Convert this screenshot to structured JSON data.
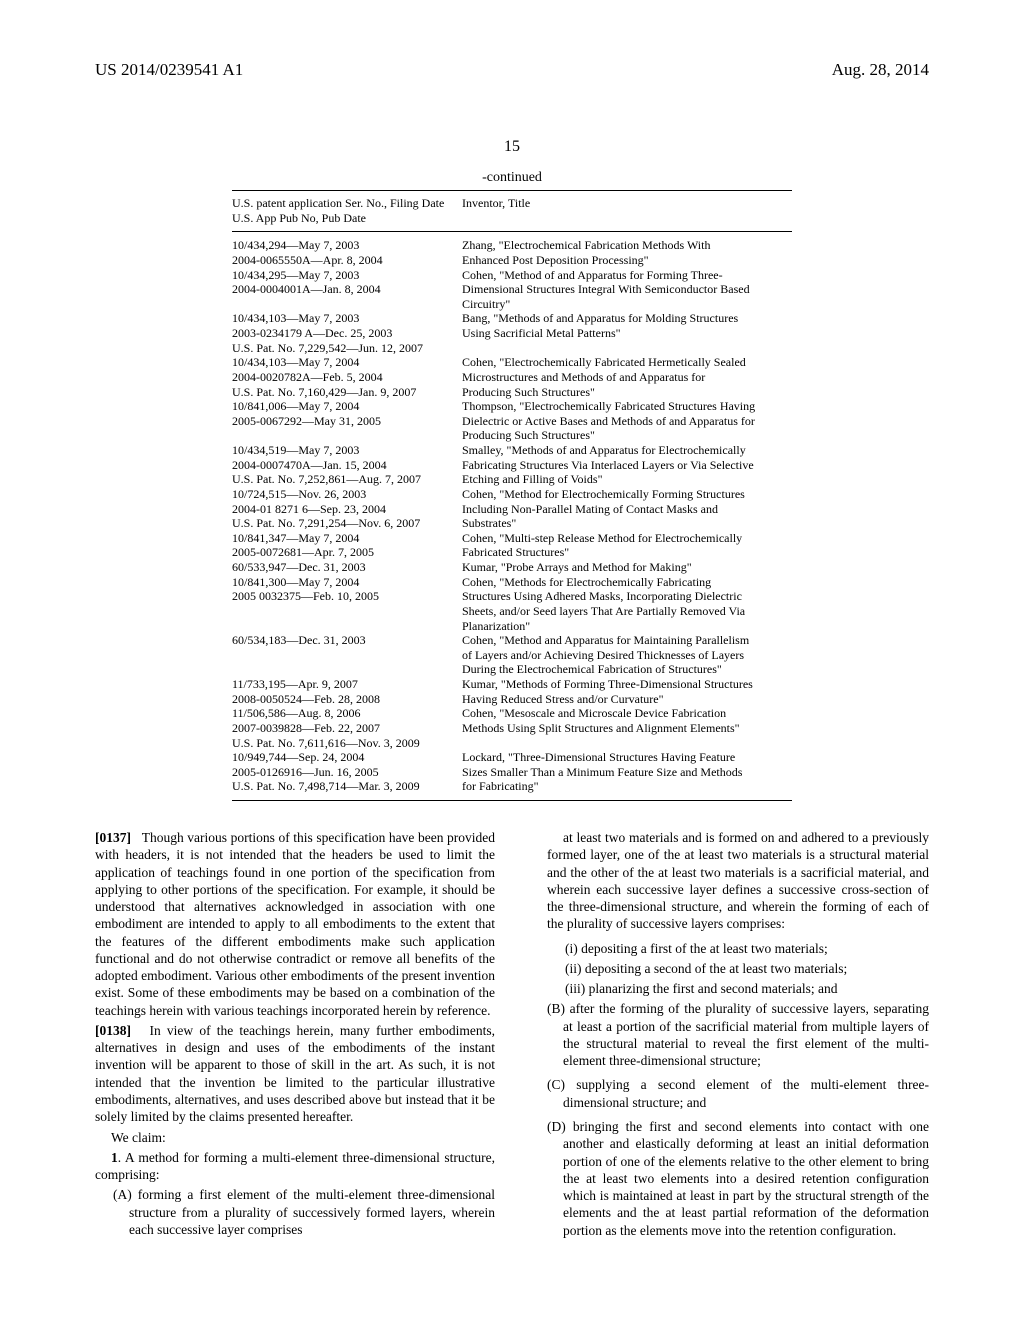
{
  "header": {
    "pub_no": "US 2014/0239541 A1",
    "pub_date": "Aug. 28, 2014"
  },
  "page_number": "15",
  "table": {
    "continued_label": "-continued",
    "header_left_line1": "U.S. patent application Ser. No., Filing Date",
    "header_left_line2": "U.S. App Pub No, Pub Date",
    "header_right": "Inventor, Title",
    "rows": [
      {
        "left": [
          "10/434,294—May 7, 2003",
          "2004-0065550A—Apr. 8, 2004"
        ],
        "right": [
          "Zhang, \"Electrochemical Fabrication Methods With",
          "Enhanced Post Deposition Processing\""
        ]
      },
      {
        "left": [
          "10/434,295—May 7, 2003",
          "2004-0004001A—Jan. 8, 2004"
        ],
        "right": [
          "Cohen, \"Method of and Apparatus for Forming Three-",
          "Dimensional Structures Integral With Semiconductor Based",
          "Circuitry\""
        ]
      },
      {
        "left": [
          "10/434,103—May 7, 2003",
          "2003-0234179 A—Dec. 25, 2003",
          "U.S. Pat. No. 7,229,542—Jun. 12, 2007"
        ],
        "right": [
          "Bang, \"Methods of and Apparatus for Molding Structures",
          "Using Sacrificial Metal Patterns\""
        ]
      },
      {
        "left": [
          "10/434,103—May 7, 2004",
          "2004-0020782A—Feb. 5, 2004",
          "U.S. Pat. No. 7,160,429—Jan. 9, 2007"
        ],
        "right": [
          "Cohen, \"Electrochemically Fabricated Hermetically Sealed",
          "Microstructures and Methods of and Apparatus for",
          "Producing Such Structures\""
        ]
      },
      {
        "left": [
          "10/841,006—May 7, 2004",
          "2005-0067292—May 31, 2005"
        ],
        "right": [
          "Thompson, \"Electrochemically Fabricated Structures Having",
          "Dielectric or Active Bases and Methods of and Apparatus for",
          "Producing Such Structures\""
        ]
      },
      {
        "left": [
          "10/434,519—May 7, 2003",
          "2004-0007470A—Jan. 15, 2004",
          "U.S. Pat. No. 7,252,861—Aug. 7, 2007"
        ],
        "right": [
          "Smalley, \"Methods of and Apparatus for Electrochemically",
          "Fabricating Structures Via Interlaced Layers or Via Selective",
          "Etching and Filling of Voids\""
        ]
      },
      {
        "left": [
          "10/724,515—Nov. 26, 2003",
          "2004-01 8271 6—Sep. 23, 2004",
          "U.S. Pat. No. 7,291,254—Nov. 6, 2007"
        ],
        "right": [
          "Cohen, \"Method for Electrochemically Forming Structures",
          "Including Non-Parallel Mating of Contact Masks and",
          "Substrates\""
        ]
      },
      {
        "left": [
          "10/841,347—May 7, 2004",
          "2005-0072681—Apr. 7, 2005"
        ],
        "right": [
          "Cohen, \"Multi-step Release Method for Electrochemically",
          "Fabricated Structures\""
        ]
      },
      {
        "left": [
          "60/533,947—Dec. 31, 2003"
        ],
        "right": [
          "Kumar, \"Probe Arrays and Method for Making\""
        ]
      },
      {
        "left": [
          "10/841,300—May 7, 2004",
          "2005 0032375—Feb. 10, 2005"
        ],
        "right": [
          "Cohen, \"Methods for Electrochemically Fabricating",
          "Structures Using Adhered Masks, Incorporating Dielectric",
          "Sheets, and/or Seed layers That Are Partially Removed Via",
          "Planarization\""
        ]
      },
      {
        "left": [
          "60/534,183—Dec. 31, 2003"
        ],
        "right": [
          "Cohen, \"Method and Apparatus for Maintaining Parallelism",
          "of Layers and/or Achieving Desired Thicknesses of Layers",
          "During the Electrochemical Fabrication of Structures\""
        ]
      },
      {
        "left": [
          "11/733,195—Apr. 9, 2007",
          "2008-0050524—Feb. 28, 2008"
        ],
        "right": [
          "Kumar, \"Methods of Forming Three-Dimensional Structures",
          "Having Reduced Stress and/or Curvature\""
        ]
      },
      {
        "left": [
          "11/506,586—Aug. 8, 2006",
          "2007-0039828—Feb. 22, 2007",
          "U.S. Pat. No. 7,611,616—Nov. 3, 2009"
        ],
        "right": [
          "Cohen, \"Mesoscale and Microscale Device Fabrication",
          "Methods Using Split Structures and Alignment Elements\""
        ]
      },
      {
        "left": [
          "10/949,744—Sep. 24, 2004",
          "2005-0126916—Jun. 16, 2005",
          "U.S. Pat. No. 7,498,714—Mar. 3, 2009"
        ],
        "right": [
          "Lockard, \"Three-Dimensional Structures Having Feature",
          "Sizes Smaller Than a Minimum Feature Size and Methods",
          "for Fabricating\""
        ]
      }
    ]
  },
  "body": {
    "left_col": {
      "p137_num": "[0137]",
      "p137": "Though various portions of this specification have been provided with headers, it is not intended that the headers be used to limit the application of teachings found in one portion of the specification from applying to other portions of the specification. For example, it should be understood that alternatives acknowledged in association with one embodiment are intended to apply to all embodiments to the extent that the features of the different embodiments make such application functional and do not otherwise contradict or remove all benefits of the adopted embodiment. Various other embodiments of the present invention exist. Some of these embodiments may be based on a combination of the teachings herein with various teachings incorporated herein by reference.",
      "p138_num": "[0138]",
      "p138": "In view of the teachings herein, many further embodiments, alternatives in design and uses of the embodiments of the instant invention will be apparent to those of skill in the art. As such, it is not intended that the invention be limited to the particular illustrative embodiments, alternatives, and uses described above but instead that it be solely limited by the claims presented hereafter.",
      "we_claim": "We claim:",
      "claim1_num": "1",
      "claim1_intro": ". A method for forming a multi-element three-dimensional structure, comprising:",
      "claim1_A": "(A) forming a first element of the multi-element three-dimensional structure from a plurality of successively formed layers, wherein each successive layer comprises"
    },
    "right_col": {
      "A_cont": "at least two materials and is formed on and adhered to a previously formed layer, one of the at least two materials is a structural material and the other of the at least two materials is a sacrificial material, and wherein each successive layer defines a successive cross-section of the three-dimensional structure, and wherein the forming of each of the plurality of successive layers comprises:",
      "i": "(i) depositing a first of the at least two materials;",
      "ii": "(ii) depositing a second of the at least two materials;",
      "iii": "(iii) planarizing the first and second materials; and",
      "B": "(B) after the forming of the plurality of successive layers, separating at least a portion of the sacrificial material from multiple layers of the structural material to reveal the first element of the multi-element three-dimensional structure;",
      "C": "(C) supplying a second element of the multi-element three-dimensional structure; and",
      "D": "(D) bringing the first and second elements into contact with one another and elastically deforming at least an initial deformation portion of one of the elements relative to the other element to bring the at least two elements into a desired retention configuration which is maintained at least in part by the structural strength of the elements and the at least partial reformation of the deformation portion as the elements move into the retention configuration."
    }
  }
}
